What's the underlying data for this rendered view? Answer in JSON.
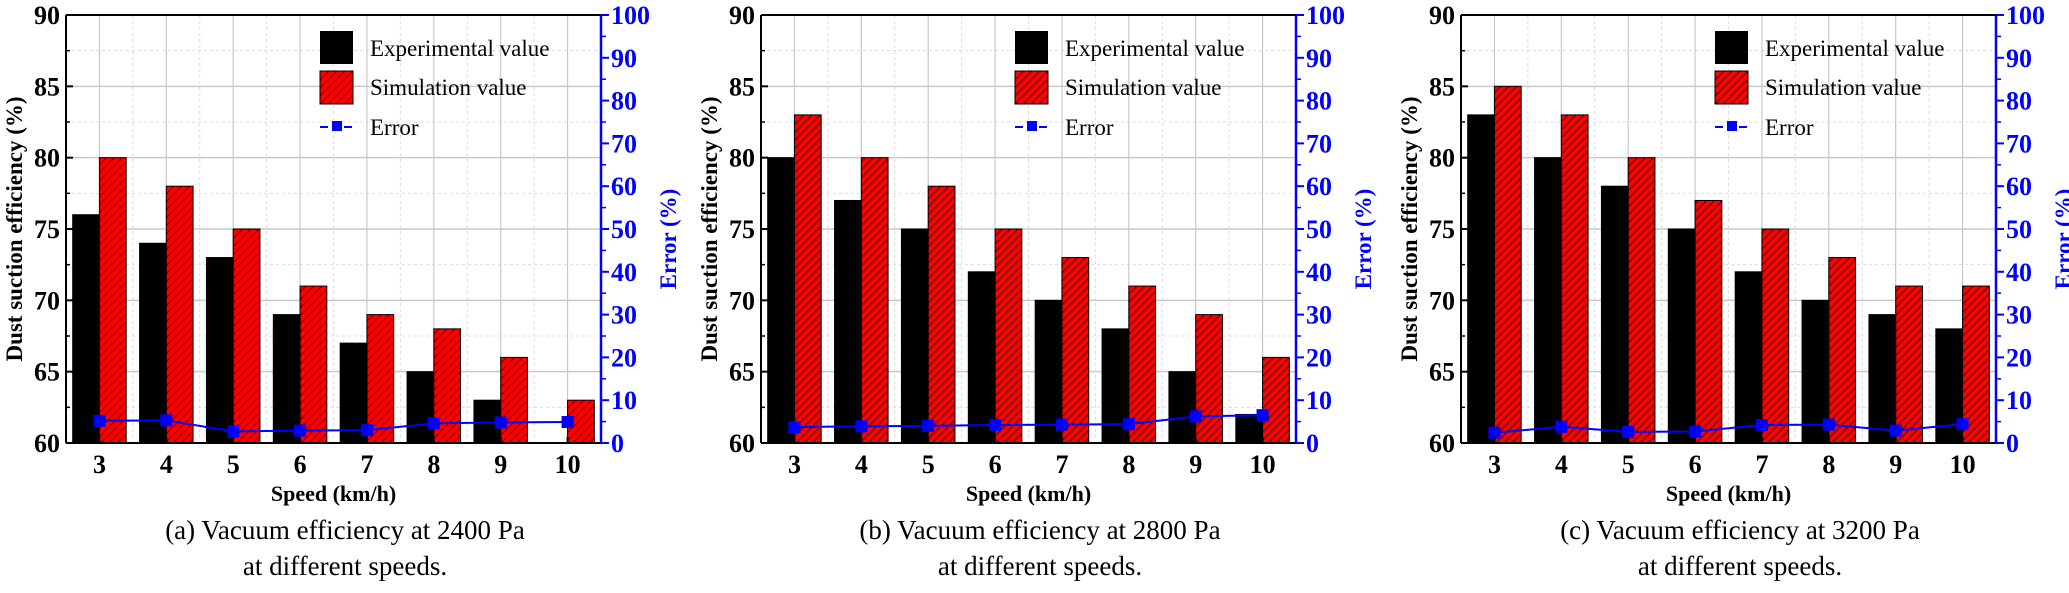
{
  "chart_data": [
    {
      "type": "bar",
      "title": "",
      "caption_line1": "(a) Vacuum efficiency at 2400 Pa",
      "caption_line2": "at different speeds.",
      "xlabel": "Speed (km/h)",
      "ylabel": "Dust suction efficiency (%)",
      "y2label": "Error (%)",
      "categories": [
        "3",
        "4",
        "5",
        "6",
        "7",
        "8",
        "9",
        "10"
      ],
      "ylim": [
        60,
        90
      ],
      "yticks": [
        60,
        65,
        70,
        75,
        80,
        85,
        90
      ],
      "y2lim": [
        0,
        100
      ],
      "y2ticks": [
        0,
        10,
        20,
        30,
        40,
        50,
        60,
        70,
        80,
        90,
        100
      ],
      "grid": true,
      "legend_position": "top-right",
      "series": [
        {
          "name": "Experimental value",
          "kind": "bar",
          "color": "#000000",
          "values": [
            76,
            74,
            73,
            69,
            67,
            65,
            63,
            60
          ]
        },
        {
          "name": "Simulation value",
          "kind": "bar-hatched",
          "color": "#ff0000",
          "values": [
            80,
            78,
            75,
            71,
            69,
            68,
            66,
            63
          ]
        },
        {
          "name": "Error",
          "kind": "line",
          "axis": "right",
          "color": "#0000ff",
          "values": [
            5.2,
            5.3,
            2.7,
            2.9,
            3.0,
            4.6,
            4.8,
            4.9
          ]
        }
      ]
    },
    {
      "type": "bar",
      "title": "",
      "caption_line1": "(b) Vacuum efficiency at 2800 Pa",
      "caption_line2": "at different speeds.",
      "xlabel": "Speed (km/h)",
      "ylabel": "Dust suction efficiency (%)",
      "y2label": "Error (%)",
      "categories": [
        "3",
        "4",
        "5",
        "6",
        "7",
        "8",
        "9",
        "10"
      ],
      "ylim": [
        60,
        90
      ],
      "yticks": [
        60,
        65,
        70,
        75,
        80,
        85,
        90
      ],
      "y2lim": [
        0,
        100
      ],
      "y2ticks": [
        0,
        10,
        20,
        30,
        40,
        50,
        60,
        70,
        80,
        90,
        100
      ],
      "grid": true,
      "legend_position": "top-right",
      "series": [
        {
          "name": "Experimental value",
          "kind": "bar",
          "color": "#000000",
          "values": [
            80,
            77,
            75,
            72,
            70,
            68,
            65,
            62
          ]
        },
        {
          "name": "Simulation value",
          "kind": "bar-hatched",
          "color": "#ff0000",
          "values": [
            83,
            80,
            78,
            75,
            73,
            71,
            69,
            66
          ]
        },
        {
          "name": "Error",
          "kind": "line",
          "axis": "right",
          "color": "#0000ff",
          "values": [
            3.7,
            3.9,
            4.0,
            4.2,
            4.3,
            4.4,
            6.2,
            6.5
          ]
        }
      ]
    },
    {
      "type": "bar",
      "title": "",
      "caption_line1": "(c) Vacuum efficiency at 3200 Pa",
      "caption_line2": "at different speeds.",
      "xlabel": "Speed (km/h)",
      "ylabel": "Dust suction efficiency (%)",
      "y2label": "Error (%)",
      "categories": [
        "3",
        "4",
        "5",
        "6",
        "7",
        "8",
        "9",
        "10"
      ],
      "ylim": [
        60,
        90
      ],
      "yticks": [
        60,
        65,
        70,
        75,
        80,
        85,
        90
      ],
      "y2lim": [
        0,
        100
      ],
      "y2ticks": [
        0,
        10,
        20,
        30,
        40,
        50,
        60,
        70,
        80,
        90,
        100
      ],
      "grid": true,
      "legend_position": "top-right",
      "series": [
        {
          "name": "Experimental value",
          "kind": "bar",
          "color": "#000000",
          "values": [
            83,
            80,
            78,
            75,
            72,
            70,
            69,
            68
          ]
        },
        {
          "name": "Simulation value",
          "kind": "bar-hatched",
          "color": "#ff0000",
          "values": [
            85,
            83,
            80,
            77,
            75,
            73,
            71,
            71
          ]
        },
        {
          "name": "Error",
          "kind": "line",
          "axis": "right",
          "color": "#0000ff",
          "values": [
            2.4,
            3.8,
            2.6,
            2.7,
            4.2,
            4.3,
            2.9,
            4.4
          ]
        }
      ]
    }
  ]
}
